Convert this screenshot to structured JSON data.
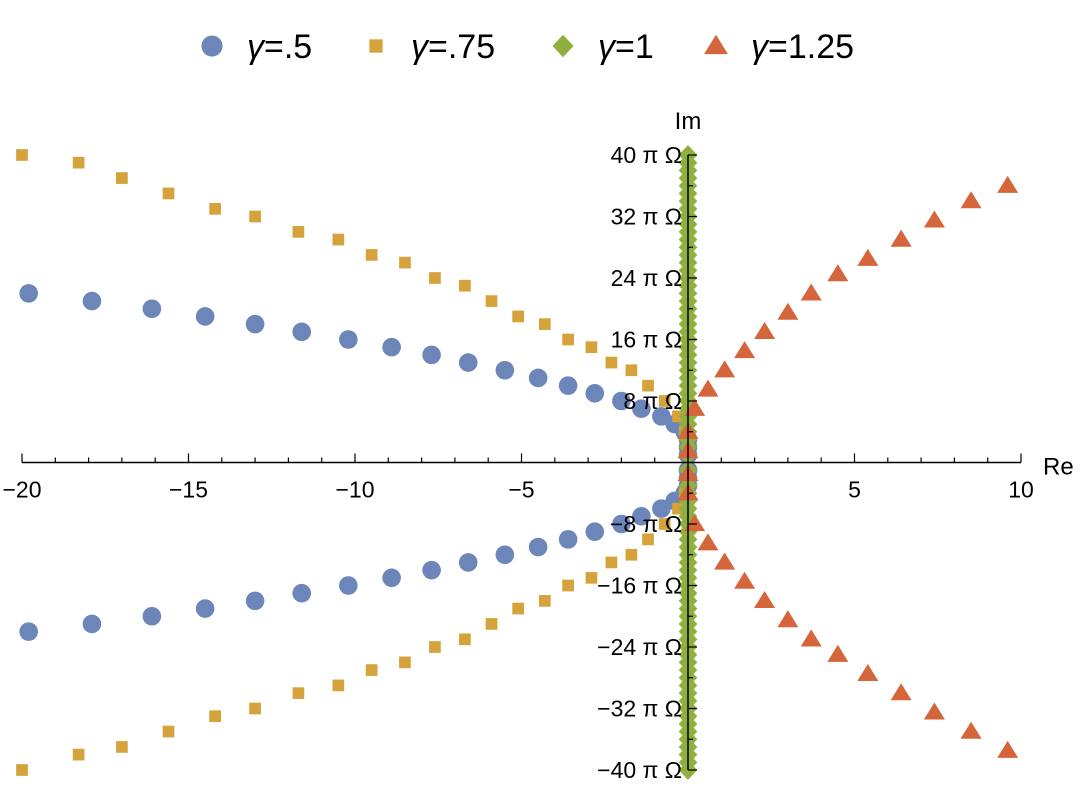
{
  "chart_data": {
    "type": "scatter",
    "title": "",
    "xlabel": "Re",
    "ylabel": "Im",
    "xlim": [
      -20,
      10
    ],
    "ylim": [
      -40,
      40
    ],
    "y_unit": "π Ω",
    "x_ticks": [
      {
        "value": -20,
        "label": "−20"
      },
      {
        "value": -15,
        "label": "−15"
      },
      {
        "value": -10,
        "label": "−10"
      },
      {
        "value": -5,
        "label": "−5"
      },
      {
        "value": 5,
        "label": "5"
      },
      {
        "value": 10,
        "label": "10"
      }
    ],
    "y_ticks": [
      {
        "value": 40,
        "label": "40 π Ω"
      },
      {
        "value": 32,
        "label": "32 π Ω"
      },
      {
        "value": 24,
        "label": "24 π Ω"
      },
      {
        "value": 16,
        "label": "16 π Ω"
      },
      {
        "value": 8,
        "label": "8 π Ω"
      },
      {
        "value": -8,
        "label": "−8 π Ω"
      },
      {
        "value": -16,
        "label": "−16 π Ω"
      },
      {
        "value": -24,
        "label": "−24 π Ω"
      },
      {
        "value": -32,
        "label": "−32 π Ω"
      },
      {
        "value": -40,
        "label": "−40 π Ω"
      }
    ],
    "legend_position": "top",
    "grid": false,
    "series": [
      {
        "name": "γ=.5",
        "marker": "circle",
        "color": "#6c86ba",
        "points": [
          [
            -19.8,
            22
          ],
          [
            -17.9,
            21
          ],
          [
            -16.1,
            20
          ],
          [
            -14.5,
            19
          ],
          [
            -13.0,
            18
          ],
          [
            -11.6,
            17
          ],
          [
            -10.2,
            16
          ],
          [
            -8.9,
            15
          ],
          [
            -7.7,
            14
          ],
          [
            -6.6,
            13
          ],
          [
            -5.5,
            12
          ],
          [
            -4.5,
            11
          ],
          [
            -3.6,
            10
          ],
          [
            -2.8,
            9
          ],
          [
            -2.0,
            8
          ],
          [
            -1.4,
            7
          ],
          [
            -0.8,
            6
          ],
          [
            -0.4,
            5
          ],
          [
            -0.1,
            4
          ],
          [
            0.0,
            3
          ],
          [
            0.0,
            2
          ],
          [
            0.0,
            1
          ],
          [
            0.0,
            -1
          ],
          [
            0.0,
            -2
          ],
          [
            0.0,
            -3
          ],
          [
            -0.1,
            -4
          ],
          [
            -0.4,
            -5
          ],
          [
            -0.8,
            -6
          ],
          [
            -1.4,
            -7
          ],
          [
            -2.0,
            -8
          ],
          [
            -2.8,
            -9
          ],
          [
            -3.6,
            -10
          ],
          [
            -4.5,
            -11
          ],
          [
            -5.5,
            -12
          ],
          [
            -6.6,
            -13
          ],
          [
            -7.7,
            -14
          ],
          [
            -8.9,
            -15
          ],
          [
            -10.2,
            -16
          ],
          [
            -11.6,
            -17
          ],
          [
            -13.0,
            -18
          ],
          [
            -14.5,
            -19
          ],
          [
            -16.1,
            -20
          ],
          [
            -17.9,
            -21
          ],
          [
            -19.8,
            -22
          ]
        ]
      },
      {
        "name": "γ=.75",
        "marker": "square",
        "color": "#d6a23c",
        "points": [
          [
            -20,
            40
          ],
          [
            -18.3,
            39
          ],
          [
            -17.0,
            37
          ],
          [
            -15.6,
            35
          ],
          [
            -14.2,
            33
          ],
          [
            -13.0,
            32
          ],
          [
            -11.7,
            30
          ],
          [
            -10.5,
            29
          ],
          [
            -9.5,
            27
          ],
          [
            -8.5,
            26
          ],
          [
            -7.6,
            24
          ],
          [
            -6.7,
            23
          ],
          [
            -5.9,
            21
          ],
          [
            -5.1,
            19
          ],
          [
            -4.3,
            18
          ],
          [
            -3.6,
            16
          ],
          [
            -2.9,
            15
          ],
          [
            -2.3,
            13
          ],
          [
            -1.7,
            12
          ],
          [
            -1.2,
            10
          ],
          [
            -0.7,
            8
          ],
          [
            -0.3,
            6
          ],
          [
            -0.1,
            4
          ],
          [
            0.0,
            2
          ],
          [
            0.0,
            -2
          ],
          [
            -0.1,
            -4
          ],
          [
            -0.3,
            -6
          ],
          [
            -0.7,
            -8
          ],
          [
            -1.2,
            -10
          ],
          [
            -1.7,
            -12
          ],
          [
            -2.3,
            -13
          ],
          [
            -2.9,
            -15
          ],
          [
            -3.6,
            -16
          ],
          [
            -4.3,
            -18
          ],
          [
            -5.1,
            -19
          ],
          [
            -5.9,
            -21
          ],
          [
            -6.7,
            -23
          ],
          [
            -7.6,
            -24
          ],
          [
            -8.5,
            -26
          ],
          [
            -9.5,
            -27
          ],
          [
            -10.5,
            -29
          ],
          [
            -11.7,
            -30
          ],
          [
            -13.0,
            -32
          ],
          [
            -14.2,
            -33
          ],
          [
            -15.6,
            -35
          ],
          [
            -17.0,
            -37
          ],
          [
            -18.3,
            -38
          ],
          [
            -20,
            -40
          ]
        ]
      },
      {
        "name": "γ=1",
        "marker": "diamond",
        "color": "#8fb03e",
        "points": [
          [
            0,
            40
          ],
          [
            0,
            39
          ],
          [
            0,
            38
          ],
          [
            0,
            37
          ],
          [
            0,
            36
          ],
          [
            0,
            35
          ],
          [
            0,
            34
          ],
          [
            0,
            33
          ],
          [
            0,
            32
          ],
          [
            0,
            31
          ],
          [
            0,
            30
          ],
          [
            0,
            29
          ],
          [
            0,
            28
          ],
          [
            0,
            27
          ],
          [
            0,
            26
          ],
          [
            0,
            25
          ],
          [
            0,
            24
          ],
          [
            0,
            23
          ],
          [
            0,
            22
          ],
          [
            0,
            21
          ],
          [
            0,
            20
          ],
          [
            0,
            19
          ],
          [
            0,
            18
          ],
          [
            0,
            17
          ],
          [
            0,
            16
          ],
          [
            0,
            15
          ],
          [
            0,
            14
          ],
          [
            0,
            13
          ],
          [
            0,
            12
          ],
          [
            0,
            11
          ],
          [
            0,
            10
          ],
          [
            0,
            9
          ],
          [
            0,
            8
          ],
          [
            0,
            7
          ],
          [
            0,
            6
          ],
          [
            0,
            5
          ],
          [
            0,
            4
          ],
          [
            0,
            3
          ],
          [
            0,
            2
          ],
          [
            0,
            1
          ],
          [
            0,
            -1
          ],
          [
            0,
            -2
          ],
          [
            0,
            -3
          ],
          [
            0,
            -4
          ],
          [
            0,
            -5
          ],
          [
            0,
            -6
          ],
          [
            0,
            -7
          ],
          [
            0,
            -8
          ],
          [
            0,
            -9
          ],
          [
            0,
            -10
          ],
          [
            0,
            -11
          ],
          [
            0,
            -12
          ],
          [
            0,
            -13
          ],
          [
            0,
            -14
          ],
          [
            0,
            -15
          ],
          [
            0,
            -16
          ],
          [
            0,
            -17
          ],
          [
            0,
            -18
          ],
          [
            0,
            -19
          ],
          [
            0,
            -20
          ],
          [
            0,
            -21
          ],
          [
            0,
            -22
          ],
          [
            0,
            -23
          ],
          [
            0,
            -24
          ],
          [
            0,
            -25
          ],
          [
            0,
            -26
          ],
          [
            0,
            -27
          ],
          [
            0,
            -28
          ],
          [
            0,
            -29
          ],
          [
            0,
            -30
          ],
          [
            0,
            -31
          ],
          [
            0,
            -32
          ],
          [
            0,
            -33
          ],
          [
            0,
            -34
          ],
          [
            0,
            -35
          ],
          [
            0,
            -36
          ],
          [
            0,
            -37
          ],
          [
            0,
            -38
          ],
          [
            0,
            -39
          ],
          [
            0,
            -40
          ]
        ]
      },
      {
        "name": "γ=1.25",
        "marker": "triangle",
        "color": "#d5653b",
        "points": [
          [
            9.6,
            36
          ],
          [
            8.5,
            34
          ],
          [
            7.4,
            31.5
          ],
          [
            6.4,
            29
          ],
          [
            5.4,
            26.5
          ],
          [
            4.5,
            24.5
          ],
          [
            3.7,
            22
          ],
          [
            3.0,
            19.5
          ],
          [
            2.3,
            17
          ],
          [
            1.7,
            14.5
          ],
          [
            1.1,
            12
          ],
          [
            0.6,
            9.5
          ],
          [
            0.2,
            7
          ],
          [
            0.0,
            4
          ],
          [
            0.0,
            1.5
          ],
          [
            0.0,
            -1.5
          ],
          [
            0.0,
            -4
          ],
          [
            0.2,
            -8
          ],
          [
            0.6,
            -10.5
          ],
          [
            1.1,
            -13
          ],
          [
            1.7,
            -15.5
          ],
          [
            2.3,
            -18
          ],
          [
            3.0,
            -20.5
          ],
          [
            3.7,
            -23
          ],
          [
            4.5,
            -25
          ],
          [
            5.4,
            -27.5
          ],
          [
            6.4,
            -30
          ],
          [
            7.4,
            -32.5
          ],
          [
            8.5,
            -35
          ],
          [
            9.6,
            -37.5
          ]
        ]
      }
    ]
  }
}
